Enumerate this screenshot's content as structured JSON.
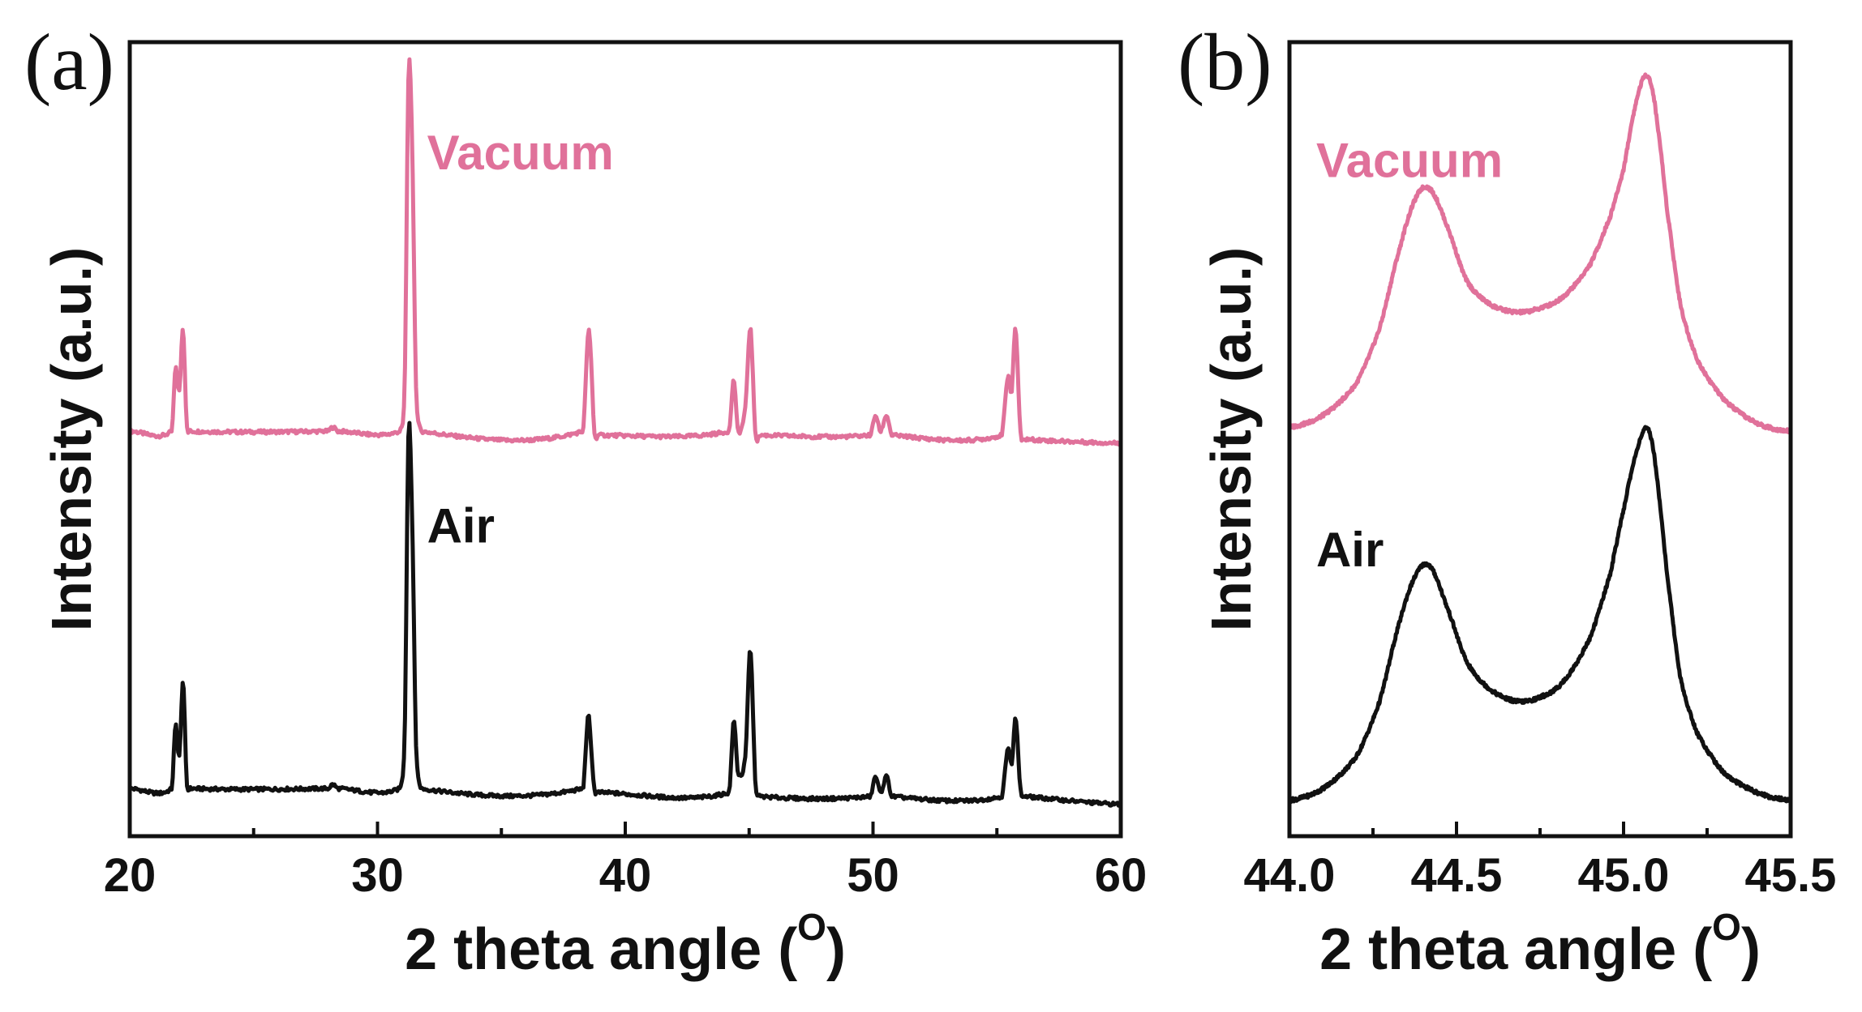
{
  "colors": {
    "vacuum": "#e0719a",
    "air": "#111111",
    "axis": "#111111"
  },
  "chart_data": [
    {
      "panel": "(a)",
      "type": "line",
      "xlabel": "2 theta angle (",
      "xlabel_sup": "O",
      "xlabel_close": ")",
      "ylabel": "Intensity (a.u.)",
      "xlim": [
        20,
        60
      ],
      "ylim": [
        0,
        100
      ],
      "x_ticks": [
        20,
        30,
        40,
        50,
        60
      ],
      "x_minor_ticks": [
        25,
        35,
        45,
        55
      ],
      "y_ticks_shown": false,
      "series": [
        {
          "name": "Vacuum",
          "color": "#e0719a",
          "baseline": 51,
          "baseline_end": 49.5,
          "x": [
            20,
            21.7,
            21.85,
            22.0,
            22.15,
            22.3,
            22.4,
            28.0,
            28.2,
            28.4,
            30.9,
            31.1,
            31.25,
            31.4,
            31.55,
            31.75,
            38.3,
            38.5,
            38.6,
            38.75,
            38.9,
            44.2,
            44.38,
            44.55,
            44.85,
            45.05,
            45.25,
            45.45,
            49.9,
            50.1,
            50.3,
            50.55,
            50.75,
            55.2,
            55.45,
            55.6,
            55.75,
            55.95,
            56.1,
            60
          ],
          "y": [
            51,
            51,
            59,
            56,
            64,
            52,
            51,
            51,
            51.5,
            51,
            51,
            57,
            96,
            87,
            57,
            51,
            51,
            63,
            61,
            51,
            50.5,
            51,
            57.5,
            51,
            54,
            64,
            51,
            50.5,
            50.5,
            53,
            51,
            53,
            50.5,
            50.5,
            58,
            56,
            64,
            51,
            50,
            49.5
          ]
        },
        {
          "name": "Air",
          "color": "#111111",
          "baseline": 6,
          "baseline_end": 4,
          "x": [
            20,
            21.7,
            21.85,
            22.0,
            22.15,
            22.3,
            22.4,
            28.0,
            28.2,
            28.4,
            30.9,
            31.1,
            31.25,
            31.4,
            31.55,
            31.75,
            38.3,
            38.5,
            38.6,
            38.75,
            38.9,
            44.2,
            44.38,
            44.55,
            44.85,
            45.05,
            45.25,
            45.45,
            49.9,
            50.1,
            50.3,
            50.55,
            50.75,
            55.2,
            55.45,
            55.6,
            55.75,
            55.95,
            56.1,
            60
          ],
          "y": [
            6,
            6,
            14,
            10,
            19.5,
            7,
            6,
            6,
            6.5,
            6,
            6,
            13,
            51,
            40,
            12,
            6,
            6,
            15,
            12,
            6,
            5.5,
            5.5,
            14.5,
            8,
            10,
            23.5,
            7,
            5,
            5,
            7.5,
            5.5,
            7.5,
            5,
            5,
            11,
            9,
            15,
            6,
            5,
            4
          ]
        }
      ],
      "annotations": [
        {
          "text": "Vacuum",
          "series": "Vacuum",
          "x": 32.0,
          "y": 84
        },
        {
          "text": "Air",
          "series": "Air",
          "x": 32.0,
          "y": 37
        }
      ]
    },
    {
      "panel": "(b)",
      "type": "line",
      "xlabel": "2 theta angle (",
      "xlabel_sup": "O",
      "xlabel_close": ")",
      "ylabel": "Intensity (a.u.)",
      "xlim": [
        44.0,
        45.5
      ],
      "ylim": [
        0,
        100
      ],
      "x_ticks": [
        44.0,
        44.5,
        45.0,
        45.5
      ],
      "x_tick_labels": [
        "44.0",
        "44.5",
        "45.0",
        "45.5"
      ],
      "x_minor_ticks": [
        44.25,
        44.75,
        45.25
      ],
      "y_ticks_shown": false,
      "series": [
        {
          "name": "Vacuum",
          "color": "#e0719a",
          "x": [
            44.0,
            44.1,
            44.2,
            44.27,
            44.33,
            44.38,
            44.42,
            44.47,
            44.53,
            44.6,
            44.68,
            44.75,
            44.82,
            44.9,
            44.96,
            45.0,
            45.03,
            45.06,
            45.08,
            45.1,
            45.13,
            45.17,
            45.22,
            45.3,
            45.4,
            45.5
          ],
          "y": [
            51.5,
            53,
            57,
            64,
            74,
            80.5,
            81.5,
            77,
            70,
            67,
            66,
            66.5,
            68,
            72,
            78,
            84,
            91,
            95.5,
            95,
            90,
            79,
            67,
            60,
            55,
            52,
            51
          ]
        },
        {
          "name": "Air",
          "color": "#111111",
          "x": [
            44.0,
            44.1,
            44.2,
            44.27,
            44.33,
            44.38,
            44.42,
            44.47,
            44.53,
            44.6,
            44.68,
            44.75,
            44.82,
            44.9,
            44.96,
            45.0,
            45.03,
            45.06,
            45.08,
            45.1,
            45.13,
            45.17,
            45.22,
            45.3,
            45.4,
            45.5
          ],
          "y": [
            4.5,
            6,
            10,
            17,
            27,
            33,
            34,
            29,
            22,
            18.5,
            17,
            17.5,
            19.5,
            25,
            33,
            41,
            47,
            51,
            50.5,
            45,
            33,
            20,
            13,
            8,
            5.5,
            4.5
          ]
        }
      ],
      "annotations": [
        {
          "text": "Vacuum",
          "series": "Vacuum",
          "x": 44.08,
          "y": 83
        },
        {
          "text": "Air",
          "series": "Air",
          "x": 44.08,
          "y": 34
        }
      ]
    }
  ]
}
